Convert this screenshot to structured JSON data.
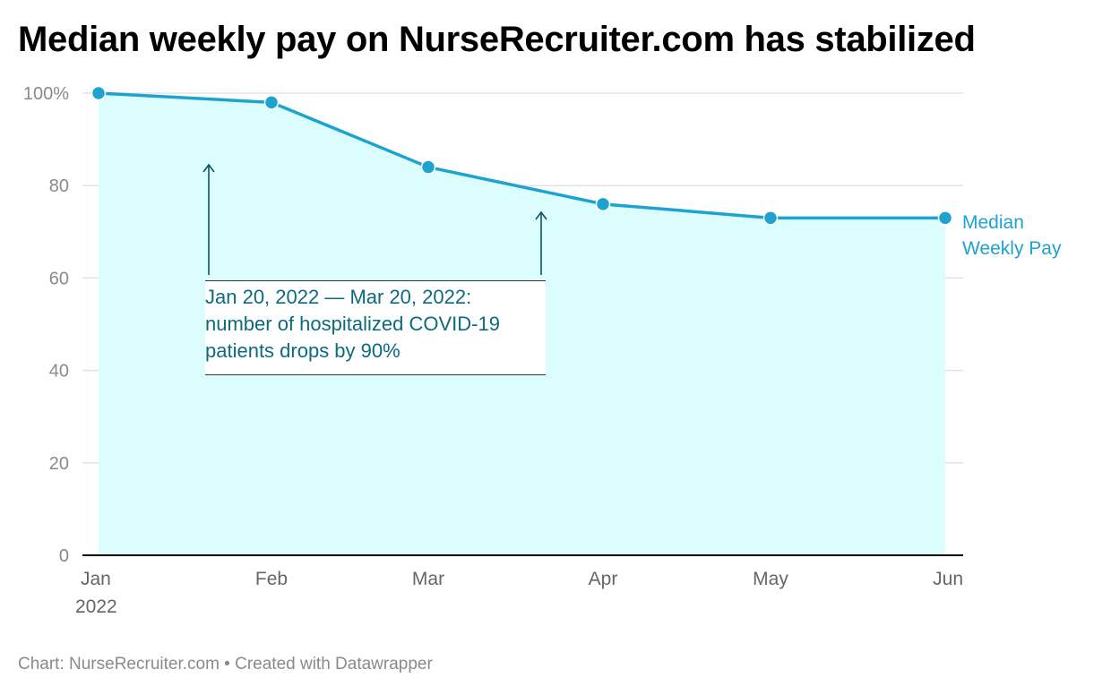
{
  "chart_data": {
    "type": "area",
    "title": "Median weekly pay on NurseRecruiter.com has stabilized",
    "x": [
      "Jan 2022",
      "Feb",
      "Mar",
      "Apr",
      "May",
      "Jun"
    ],
    "x_tick_labels": [
      [
        "Jan",
        "2022"
      ],
      [
        "Feb"
      ],
      [
        "Mar"
      ],
      [
        "Apr"
      ],
      [
        "May"
      ],
      [
        "Jun"
      ]
    ],
    "series": [
      {
        "name": "Median Weekly Pay",
        "label_lines": [
          "Median",
          "Weekly Pay"
        ],
        "values": [
          100,
          98,
          84,
          76,
          73,
          73
        ]
      }
    ],
    "y_ticks": [
      0,
      20,
      40,
      60,
      80,
      100
    ],
    "y_tick_labels": [
      "0",
      "20",
      "40",
      "60",
      "80",
      "100%"
    ],
    "ylim": [
      0,
      100
    ],
    "grid": true,
    "legend": "inline-right",
    "annotation": {
      "lines": [
        "Jan 20, 2022 — Mar 20, 2022:",
        "number of hospitalized COVID-19",
        "patients drops by 90%"
      ],
      "arrow_points_x": [
        "Jan 20, 2022",
        "Mar 20, 2022"
      ]
    }
  },
  "footer": "Chart: NurseRecruiter.com • Created with Datawrapper",
  "colors": {
    "line": "#1ea2cf",
    "area_fill": "#dcfdfd",
    "annotation_text": "#0c6a80",
    "annotation_arrow": "#0c5566",
    "grid": "#e3e3e3",
    "axis": "#000000"
  }
}
